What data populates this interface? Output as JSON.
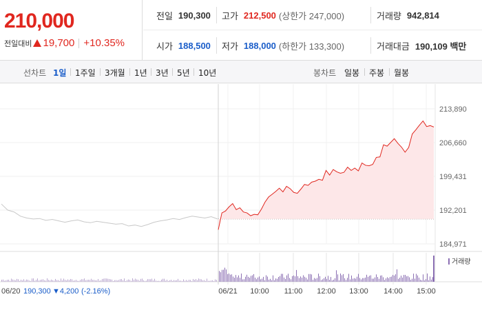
{
  "quote": {
    "price": "210,000",
    "change_label": "전일대비",
    "change_value": "19,700",
    "change_pct": "+10.35%",
    "prev_close_label": "전일",
    "prev_close": "190,300",
    "high_label": "고가",
    "high": "212,500",
    "upper_limit": "(상한가 247,000)",
    "volume_label": "거래량",
    "volume": "942,814",
    "open_label": "시가",
    "open": "188,500",
    "low_label": "저가",
    "low": "188,000",
    "lower_limit": "(하한가 133,300)",
    "turnover_label": "거래대금",
    "turnover": "190,109 백만",
    "up_color": "#e0271f",
    "down_color": "#1a5dc9"
  },
  "toolbar": {
    "line_chart_label": "선차트",
    "line_periods": [
      "1일",
      "1주일",
      "3개월",
      "1년",
      "3년",
      "5년",
      "10년"
    ],
    "active_period": "1일",
    "candle_chart_label": "봉차트",
    "candle_periods": [
      "일봉",
      "주봉",
      "월봉"
    ]
  },
  "chart_data": {
    "type": "line",
    "y_ticks": [
      "213,890",
      "206,660",
      "199,431",
      "192,201",
      "184,971"
    ],
    "y_tick_values": [
      213890,
      206660,
      199431,
      192201,
      184971
    ],
    "ylim": [
      184971,
      213890
    ],
    "x_ticks": [
      "06/21",
      "10:00",
      "11:00",
      "12:00",
      "13:00",
      "14:00",
      "15:00"
    ],
    "prev_day_label": "06/20",
    "prev_day_close": "190,300",
    "prev_day_change": "▼4,200",
    "prev_day_pct": "(-2.16%)",
    "reference_line": 190300,
    "volume_legend": "거래량",
    "prev_day_series": [
      193500,
      192200,
      191800,
      190900,
      190500,
      190300,
      190400,
      190000,
      190200,
      189900,
      189600,
      189900,
      190100,
      189700,
      189500,
      189800,
      189600,
      189400,
      189200,
      189300,
      188800,
      189000,
      188700,
      189100,
      189600,
      189900,
      190100,
      190400,
      190200,
      190600,
      190900,
      190700,
      190500,
      190800,
      190300
    ],
    "today_series": [
      188000,
      191600,
      192000,
      192900,
      193600,
      192300,
      192700,
      191800,
      191600,
      191000,
      191300,
      191200,
      192400,
      193900,
      195000,
      195600,
      196200,
      196900,
      196100,
      197300,
      196800,
      196000,
      195800,
      196700,
      197700,
      197500,
      198200,
      198400,
      198800,
      198600,
      200700,
      199700,
      200900,
      200400,
      200100,
      200300,
      201400,
      200700,
      201200,
      200600,
      202300,
      201800,
      201700,
      202000,
      203500,
      203600,
      206200,
      205900,
      206700,
      207500,
      206500,
      205700,
      204600,
      205600,
      208500,
      209400,
      210400,
      211300,
      210100,
      210300,
      210000
    ],
    "up_fill": "#fde7e8",
    "up_line": "#e0271f",
    "prev_line": "#c8c8c8"
  }
}
